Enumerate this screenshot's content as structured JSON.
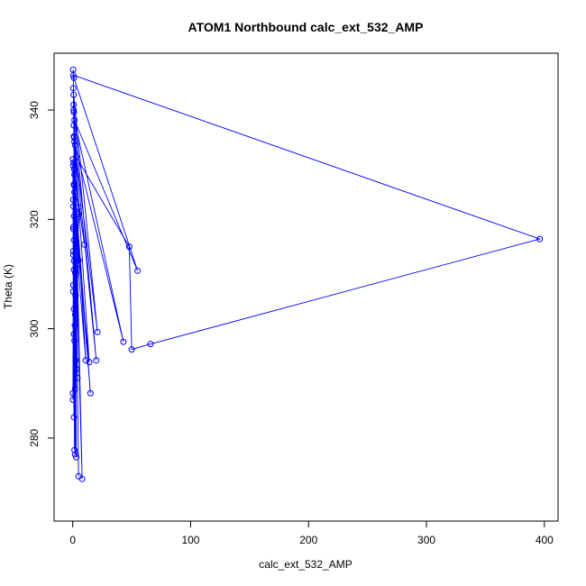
{
  "chart_data": {
    "type": "scatter",
    "title": "ATOM1 Northbound calc_ext_532_AMP",
    "xlabel": "calc_ext_532_AMP",
    "ylabel": "Theta (K)",
    "xlim": [
      -15.8,
      411.6
    ],
    "ylim": [
      264.8,
      350.4
    ],
    "xticks": [
      0,
      100,
      200,
      300,
      400
    ],
    "yticks": [
      280,
      300,
      320,
      340
    ],
    "grid": false,
    "series": [
      {
        "color": "#0000ff",
        "marker": "open-circle",
        "connected": true,
        "points": [
          [
            0.5,
            346.4
          ],
          [
            396,
            316.4
          ],
          [
            66,
            297.2
          ],
          [
            50,
            296.2
          ],
          [
            48,
            315.0
          ],
          [
            3,
            331.4
          ],
          [
            1,
            339.6
          ],
          [
            0.3,
            347.4
          ],
          [
            1,
            345.9
          ],
          [
            55,
            310.6
          ],
          [
            1.5,
            338.2
          ],
          [
            43,
            297.6
          ],
          [
            2,
            333.6
          ],
          [
            0.8,
            342.8
          ],
          [
            21,
            299.4
          ],
          [
            1.2,
            335.0
          ],
          [
            20,
            294.2
          ],
          [
            0.8,
            341.0
          ],
          [
            8,
            272.5
          ],
          [
            1.2,
            326.2
          ],
          [
            5,
            322.2
          ],
          [
            2,
            277.0
          ],
          [
            1.5,
            334.2
          ],
          [
            14,
            293.9
          ],
          [
            0.6,
            322.4
          ],
          [
            11,
            294.2
          ],
          [
            1.2,
            329.2
          ],
          [
            10,
            315.4
          ],
          [
            0.4,
            329.8
          ],
          [
            15,
            288.2
          ],
          [
            3,
            320.0
          ],
          [
            0.5,
            344.0
          ],
          [
            5,
            273.0
          ],
          [
            0.8,
            340.0
          ],
          [
            4,
            291.0
          ],
          [
            1.0,
            335.2
          ],
          [
            3,
            276.5
          ],
          [
            1.5,
            325.0
          ],
          [
            5,
            312.5
          ],
          [
            1.2,
            316.2
          ],
          [
            2.5,
            306.0
          ],
          [
            0.9,
            330.4
          ],
          [
            4,
            311.8
          ],
          [
            2.0,
            302.6
          ],
          [
            0.9,
            337.2
          ],
          [
            5,
            321.0
          ],
          [
            1.2,
            320.6
          ],
          [
            3,
            292.6
          ],
          [
            1,
            283.8
          ],
          [
            0.6,
            318.6
          ],
          [
            2,
            289.0
          ],
          [
            1.5,
            297.8
          ],
          [
            1.0,
            326.4
          ],
          [
            0.6,
            313.5
          ],
          [
            1.8,
            300.6
          ],
          [
            0.6,
            308.0
          ],
          [
            2.2,
            310.2
          ],
          [
            0.2,
            288.2
          ],
          [
            0.5,
            314.2
          ],
          [
            0.2,
            287.0
          ],
          [
            1.2,
            310.8
          ],
          [
            1.5,
            277.8
          ],
          [
            1.5,
            328.2
          ],
          [
            2.4,
            306.2
          ],
          [
            0.4,
            306.8
          ],
          [
            0.2,
            331.0
          ],
          [
            1.2,
            312.4
          ],
          [
            0.6,
            318.2
          ],
          [
            0.5,
            323.6
          ],
          [
            1.0,
            299.0
          ],
          [
            2.5,
            294.2
          ],
          [
            1.0,
            303.6
          ]
        ]
      }
    ]
  }
}
